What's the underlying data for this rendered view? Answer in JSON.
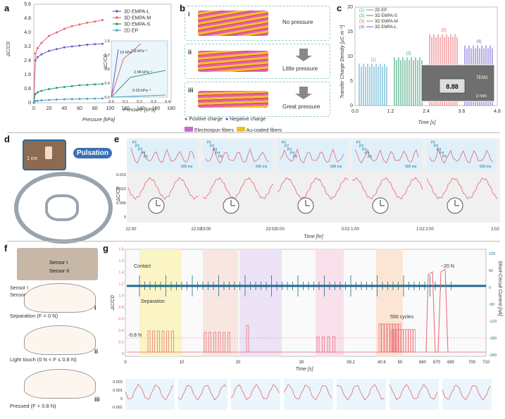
{
  "panel_labels": {
    "a": "a",
    "b": "b",
    "c": "c",
    "d": "d",
    "e": "e",
    "f": "f",
    "g": "g"
  },
  "a": {
    "ylabel": "ΔC/C0",
    "xlabel": "Pressure [kPa]",
    "yticks": [
      "0",
      "0.8",
      "1.6",
      "2.4",
      "3.2",
      "4.0",
      "4.8",
      "5.6"
    ],
    "xticks": [
      "0",
      "20",
      "40",
      "60",
      "80",
      "100",
      "120",
      "140",
      "160",
      "180"
    ],
    "legend": [
      "3D EMPA-L",
      "3D EMPA-M",
      "3D EMPA-S",
      "2D EP"
    ],
    "colors": [
      "#6a5acd",
      "#e8646e",
      "#2e9e6e",
      "#4aa3c8"
    ],
    "inset": {
      "yticks": [
        "0.0",
        "0.4",
        "0.8",
        "1.2",
        "1.6"
      ],
      "xticks": [
        "0.0",
        "0.1",
        "0.2",
        "0.3",
        "0.4"
      ],
      "xlabel": "Pressure [kPa]",
      "ylabel": "ΔC/C0",
      "slopes": [
        "19 kPa⁻¹",
        "7.8 kPa⁻¹",
        "2.58 kPa⁻¹",
        "0.03 kPa⁻¹"
      ]
    }
  },
  "chart_data": [
    {
      "type": "line",
      "xlabel": "Pressure [kPa]",
      "ylabel": "ΔC/C0",
      "xlim": [
        0,
        180
      ],
      "ylim": [
        0,
        5.6
      ],
      "x": [
        0,
        2,
        5,
        10,
        20,
        30,
        40,
        50,
        60,
        70,
        80,
        90
      ],
      "series": [
        {
          "name": "3D EMPA-L",
          "values": [
            0,
            2.4,
            2.6,
            2.75,
            2.95,
            3.05,
            3.15,
            3.2,
            3.25,
            3.3,
            3.33,
            3.35
          ]
        },
        {
          "name": "3D EMPA-M",
          "values": [
            0,
            2.8,
            3.1,
            3.4,
            3.8,
            4.0,
            4.2,
            4.35,
            4.45,
            4.55,
            4.62,
            4.7
          ]
        },
        {
          "name": "3D EMPA-S",
          "values": [
            0,
            0.5,
            0.6,
            0.68,
            0.78,
            0.85,
            0.9,
            0.95,
            1.0,
            1.02,
            1.05,
            1.07
          ]
        },
        {
          "name": "2D EP",
          "values": [
            0,
            0.1,
            0.12,
            0.14,
            0.16,
            0.18,
            0.2,
            0.21,
            0.22,
            0.23,
            0.24,
            0.25
          ]
        }
      ]
    },
    {
      "type": "bar",
      "xlabel": "Time [s]",
      "ylabel": "Transfer Charge Density [μC m⁻²]",
      "xlim": [
        0,
        4.8
      ],
      "ylim": [
        0,
        20
      ],
      "categories": [
        "2D EP",
        "3D EMPA-S",
        "3D EMPA-M",
        "3D EMPA-L"
      ],
      "values": [
        8.5,
        9.8,
        14.5,
        12.2
      ]
    }
  ],
  "b": {
    "rows": [
      {
        "num": "i",
        "text": "No pressure"
      },
      {
        "num": "ii",
        "text": "Little pressure"
      },
      {
        "num": "iii",
        "text": "Great pressure"
      }
    ],
    "legend": [
      "Positive charge",
      "Negative charge",
      "Electrospun fibers",
      "Au-coated fibers"
    ]
  },
  "c": {
    "ylabel": "Transfer Charge Density [μC m⁻²]",
    "xlabel": "Time [s]",
    "yticks": [
      "0",
      "5",
      "10",
      "15",
      "20"
    ],
    "xticks": [
      "0.0",
      "1.2",
      "2.4",
      "3.6",
      "4.8"
    ],
    "legend": [
      {
        "num": "(1)",
        "name": "2D EP"
      },
      {
        "num": "(2)",
        "name": "3D EMPA-S"
      },
      {
        "num": "(3)",
        "name": "3D EMPA-M"
      },
      {
        "num": "(4)",
        "name": "3D EMPA-L"
      }
    ],
    "peak_labels": [
      "(1)",
      "(2)",
      "(3)",
      "(4)"
    ],
    "inset_text": "TENG",
    "inset_scale": "2 mm",
    "meter": "8.88"
  },
  "d": {
    "scale": "1 cm",
    "pulsation": "Pulsation"
  },
  "e": {
    "ylabel": "ΔC/C0",
    "yticks": [
      "0.015",
      "0.010",
      "0.005",
      "0"
    ],
    "xticks": [
      "22:00",
      "22:02",
      "23:00",
      "23:02",
      "0:00",
      "0:02",
      "1:00",
      "1:02",
      "2:00",
      "2:02"
    ],
    "xlabel": "Time [hr]",
    "inset_scale": "500 ms",
    "peaks": [
      "P1",
      "P2",
      "P3",
      "P4",
      "P5"
    ]
  },
  "f": {
    "sensor1": "Sensor I",
    "sensor2": "Sensor II",
    "states": [
      {
        "text": "Separation (F = 0 N)",
        "num": "i"
      },
      {
        "text": "Light touch (0 N < F ≤ 0.8 N)",
        "num": "ii"
      },
      {
        "text": "Pressed (F > 0.8 N)",
        "num": "iii"
      }
    ]
  },
  "g": {
    "ylabel_left": "ΔC/C0",
    "ylabel_right": "Short-Circuit Current [nA]",
    "yticks_left": [
      "0",
      "0.2",
      "0.4",
      "0.6",
      "0.8",
      "1.0",
      "1.2",
      "1.4",
      "1.6",
      "1.8"
    ],
    "yticks_right": [
      "120",
      "60",
      "0",
      "-60",
      "-120",
      "-180",
      "-240"
    ],
    "xticks": [
      "0",
      "10",
      "20",
      "30",
      "39.2",
      "40.6",
      "50",
      "660",
      "670",
      "680",
      "700",
      "710"
    ],
    "xlabel": "Time [s]",
    "annotations": {
      "contact": "Contact",
      "separation": "Separation",
      "force_low": "-0.8 N",
      "force_high": "~20 N",
      "cycles": "550 cycles"
    },
    "bottom_yticks": [
      "0.002",
      "0.001",
      "0",
      "-0.001"
    ]
  }
}
